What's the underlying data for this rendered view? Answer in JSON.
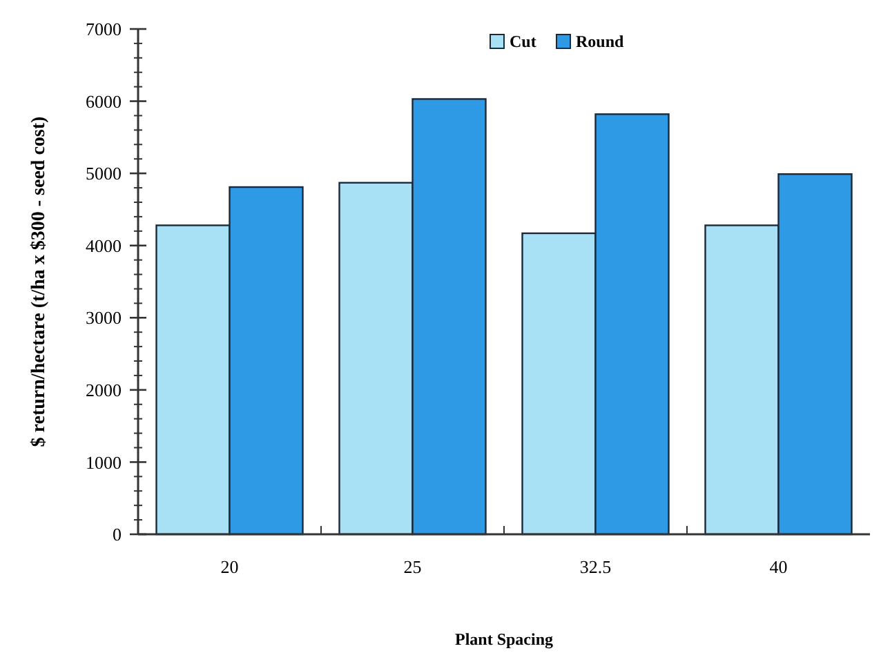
{
  "chart_data": {
    "type": "bar",
    "xlabel": "Plant Spacing",
    "ylabel": "$ return/hectare (t/ha x $300 - seed cost)",
    "categories": [
      "20",
      "25",
      "32.5",
      "40"
    ],
    "series": [
      {
        "name": "Cut",
        "color": "#a8e0f5",
        "values": [
          4280,
          4870,
          4170,
          4280
        ]
      },
      {
        "name": "Round",
        "color": "#2e9ae6",
        "values": [
          4810,
          6030,
          5820,
          4990
        ]
      }
    ],
    "ylim": [
      0,
      7000
    ],
    "yticks": [
      0,
      1000,
      2000,
      3000,
      4000,
      5000,
      6000,
      7000
    ],
    "legend": "top"
  }
}
